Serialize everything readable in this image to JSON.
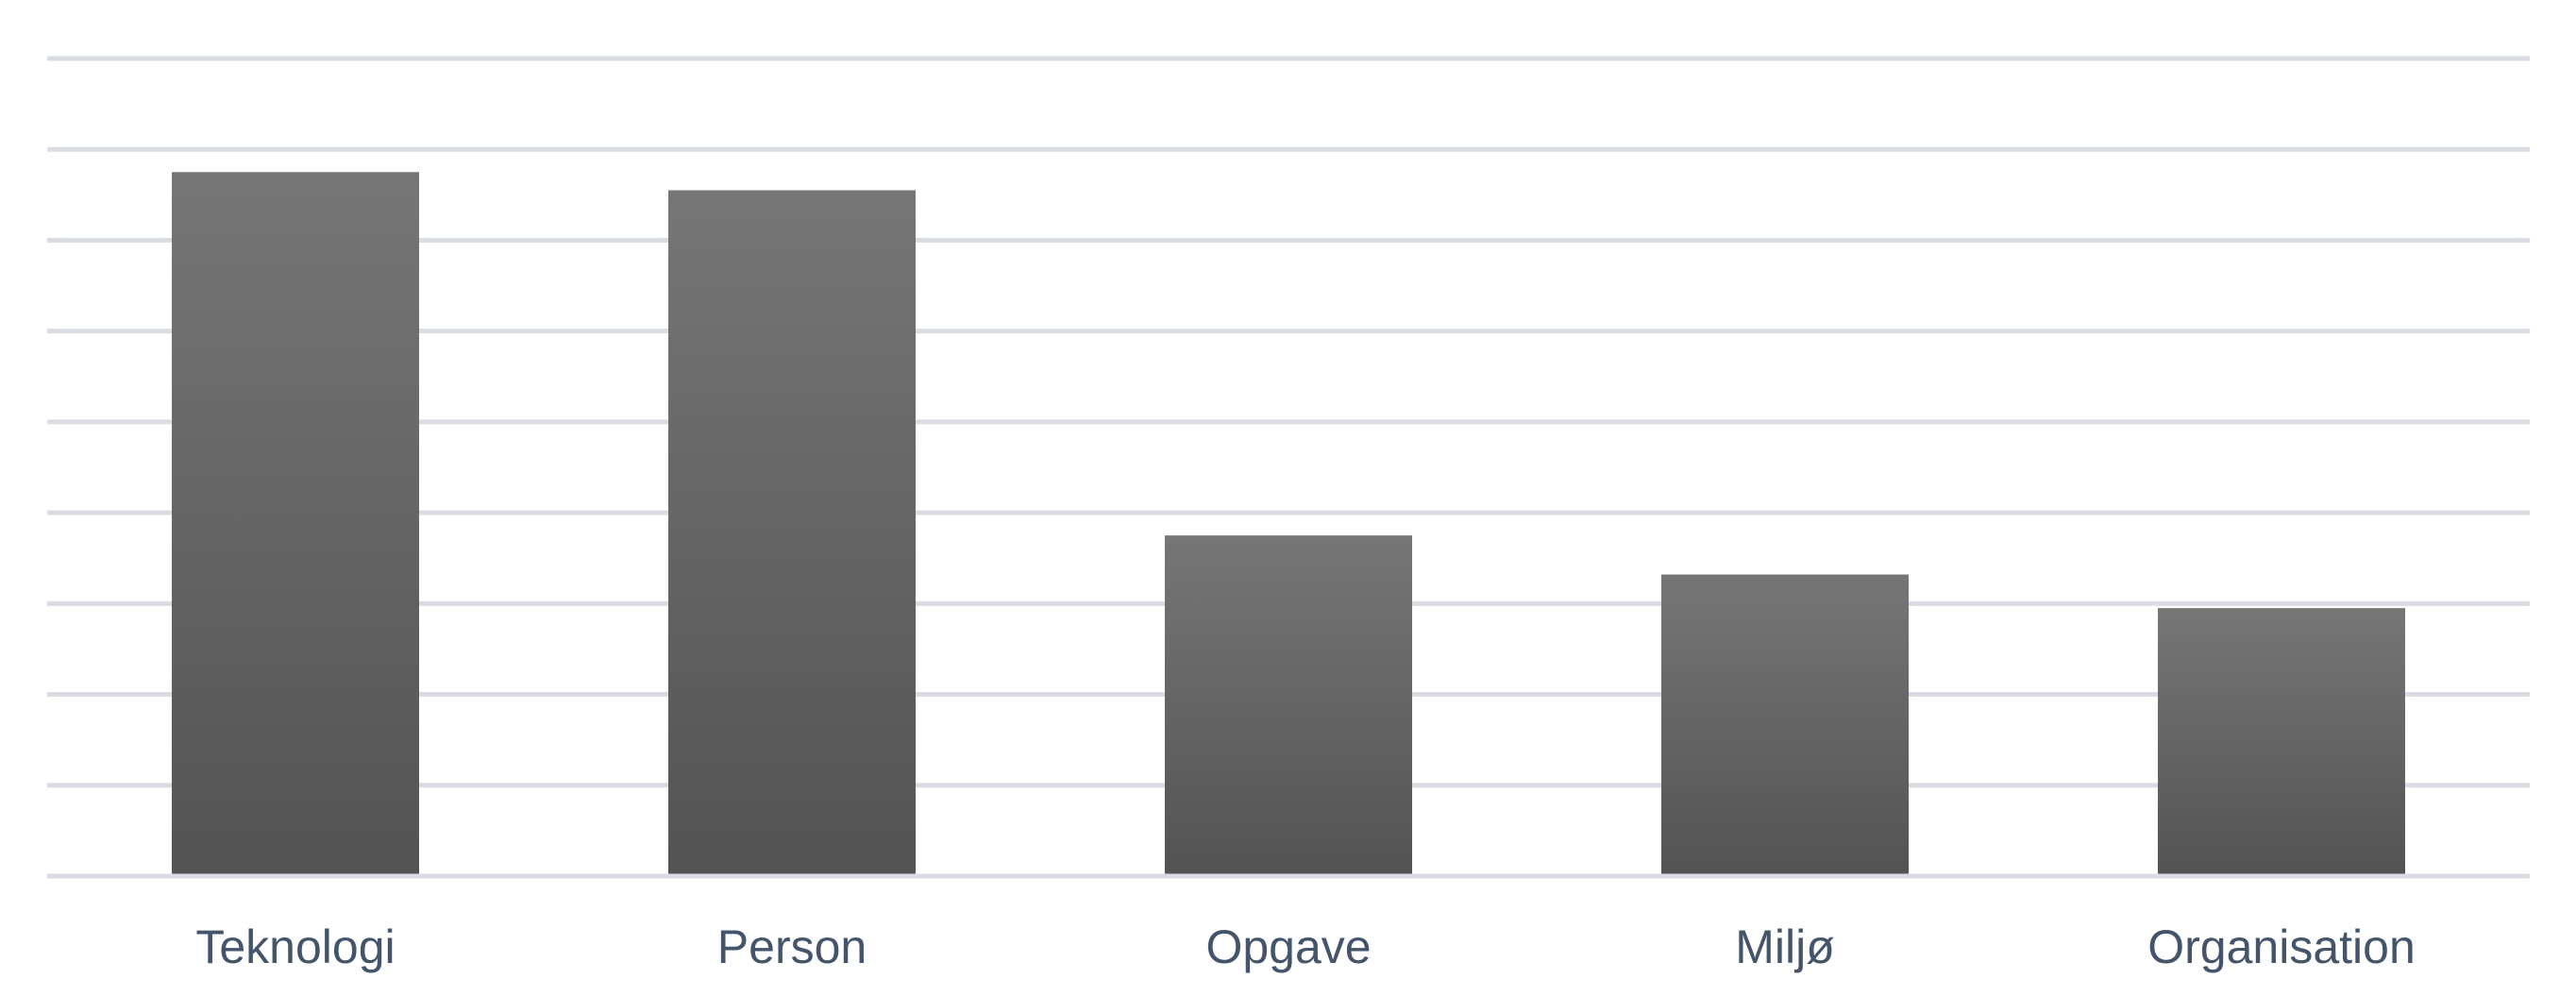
{
  "chart_data": {
    "type": "bar",
    "categories": [
      "Teknologi",
      "Person",
      "Opgave",
      "Miljø",
      "Organisation"
    ],
    "values": [
      7.75,
      7.55,
      3.75,
      3.32,
      2.95
    ],
    "ylim": [
      0,
      9
    ],
    "grid": true,
    "legend": "none",
    "colors": {
      "bar_top": "#767676",
      "bar_bottom": "#535353",
      "grid": "#d9dde3",
      "axis": "#d9dde3",
      "label": "#44546a"
    }
  }
}
